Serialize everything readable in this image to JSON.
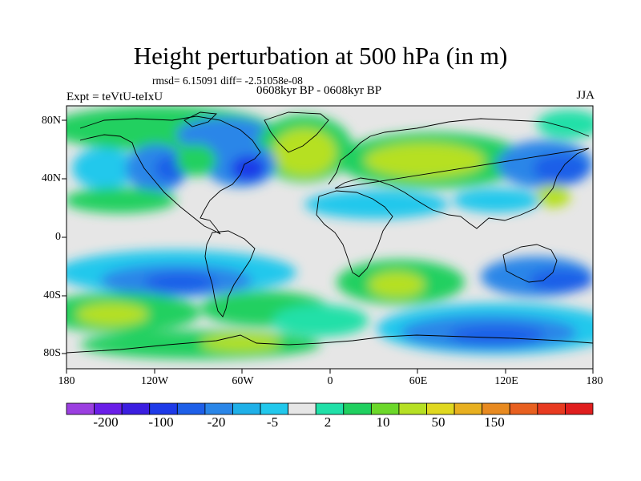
{
  "title": "Height perturbation at 500 hPa (in m)",
  "stats_line": "rmsd= 6.15091  diff= -2.51058e-08",
  "period": "0608kyr BP - 0608kyr BP",
  "experiment": "Expt = teVtU-teIxU",
  "season": "JJA",
  "map": {
    "lon_range": [
      -180,
      180
    ],
    "lat_range": [
      -90,
      90
    ],
    "lat_tick_labels": [
      "80N",
      "40N",
      "0",
      "40S",
      "80S"
    ],
    "lon_tick_labels": [
      "180",
      "120W",
      "60W",
      "0",
      "60E",
      "120E",
      "180"
    ],
    "background_color": "#e6e6e6",
    "coastline_color": "#000000"
  },
  "colorbar": {
    "colors": [
      "#9b3fe0",
      "#6a1ee8",
      "#3b1ee0",
      "#1e3ae8",
      "#1e5fe8",
      "#2a86e8",
      "#1fb0e8",
      "#22c8ec",
      "#e6e6e6",
      "#20e0a8",
      "#20d060",
      "#6cd82a",
      "#b6e024",
      "#e0d820",
      "#e8b020",
      "#e88a20",
      "#e86020",
      "#e83a20",
      "#e01e1e"
    ],
    "labels": [
      "-200",
      "-100",
      "-20",
      "-5",
      "2",
      "10",
      "50",
      "150"
    ]
  }
}
